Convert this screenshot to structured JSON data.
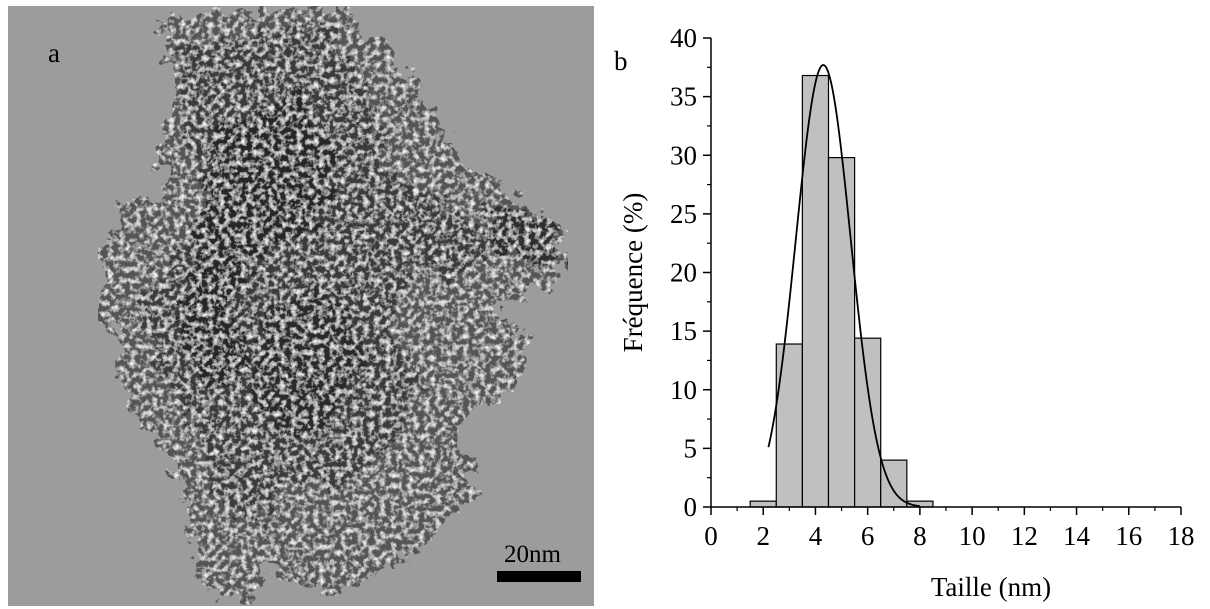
{
  "panel_a": {
    "label": "a",
    "scale_bar_label": "20nm"
  },
  "panel_b": {
    "label": "b"
  },
  "colors": {
    "micrograph_background": "#9a9a9a",
    "particle_dark": "#2e2e2e",
    "bar_fill": "#c0c0c0",
    "bar_stroke": "#000000",
    "fit_line": "#000000"
  },
  "chart_data": {
    "type": "bar",
    "title": "",
    "xlabel": "Taille (nm)",
    "ylabel": "Fréquence (%)",
    "xlim": [
      0,
      18
    ],
    "ylim": [
      0,
      40
    ],
    "xticks": [
      0,
      2,
      4,
      6,
      8,
      10,
      12,
      14,
      16,
      18
    ],
    "yticks": [
      0,
      5,
      10,
      15,
      20,
      25,
      30,
      35,
      40
    ],
    "bin_width": 1,
    "bins": [
      {
        "center": 2,
        "value": 0.5
      },
      {
        "center": 3,
        "value": 13.9
      },
      {
        "center": 4,
        "value": 36.8
      },
      {
        "center": 5,
        "value": 29.8
      },
      {
        "center": 6,
        "value": 14.4
      },
      {
        "center": 7,
        "value": 4.0
      },
      {
        "center": 8,
        "value": 0.5
      }
    ],
    "fit": {
      "type": "gaussian",
      "mean": 4.3,
      "peak": 37.7,
      "sigma": 1.05,
      "x_range": [
        2.2,
        8.0
      ]
    },
    "grid": false,
    "legend": "none"
  }
}
